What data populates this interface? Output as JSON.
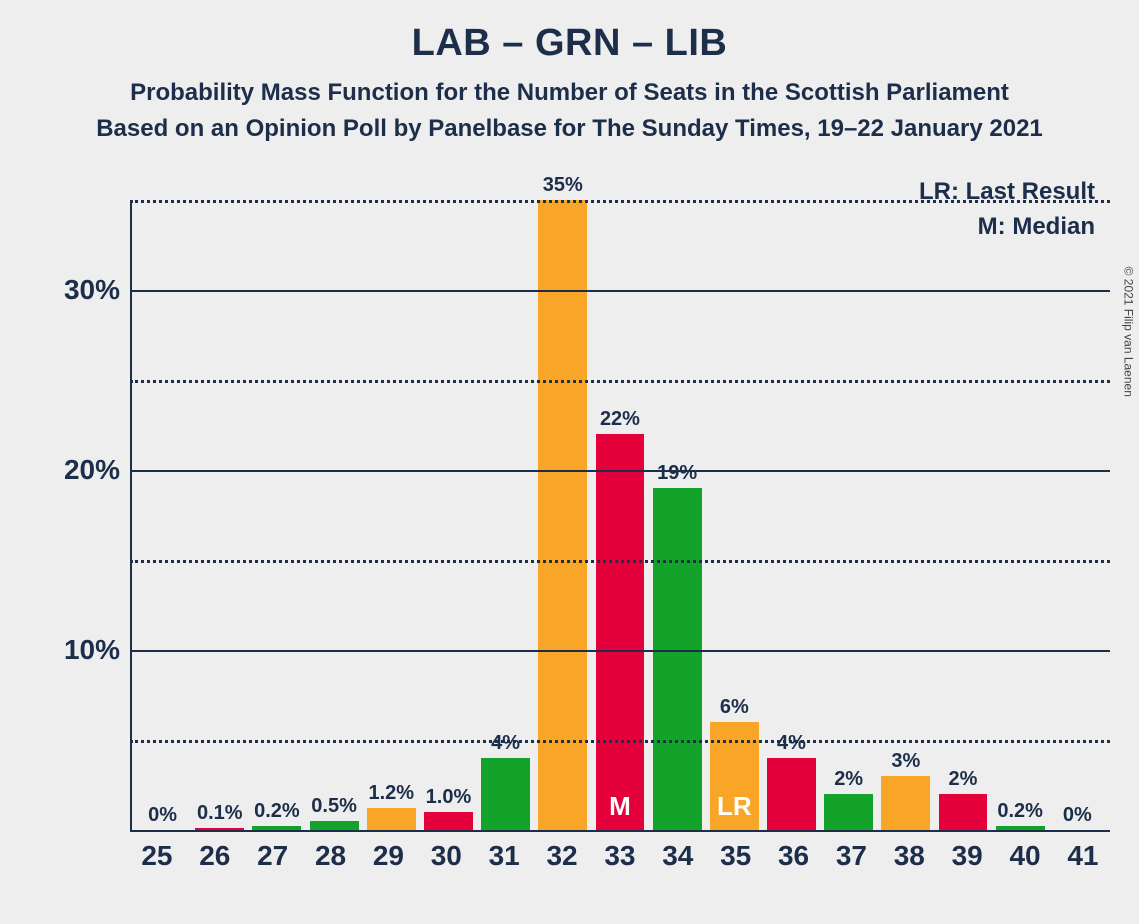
{
  "title": "LAB – GRN – LIB",
  "subtitle1": "Probability Mass Function for the Number of Seats in the Scottish Parliament",
  "subtitle2": "Based on an Opinion Poll by Panelbase for The Sunday Times, 19–22 January 2021",
  "legend": {
    "lr": "LR: Last Result",
    "m": "M: Median"
  },
  "copyright": "© 2021 Filip van Laenen",
  "chart": {
    "type": "bar",
    "background_color": "#eeeeee",
    "text_color": "#1c2e4a",
    "colors": {
      "red": "#e4003b",
      "green": "#13a32a",
      "orange": "#f9a527"
    },
    "y_axis": {
      "max": 35,
      "major_ticks": [
        10,
        20,
        30
      ],
      "minor_ticks": [
        5,
        15,
        25,
        35
      ]
    },
    "categories": [
      "25",
      "26",
      "27",
      "28",
      "29",
      "30",
      "31",
      "32",
      "33",
      "34",
      "35",
      "36",
      "37",
      "38",
      "39",
      "40",
      "41"
    ],
    "bars": [
      {
        "x": "25",
        "label": "0%",
        "value": 0,
        "color": "orange"
      },
      {
        "x": "26",
        "label": "0.1%",
        "value": 0.1,
        "color": "red"
      },
      {
        "x": "27",
        "label": "0.2%",
        "value": 0.2,
        "color": "green"
      },
      {
        "x": "28",
        "label": "0.5%",
        "value": 0.5,
        "color": "green"
      },
      {
        "x": "29",
        "label": "1.2%",
        "value": 1.2,
        "color": "orange"
      },
      {
        "x": "30",
        "label": "1.0%",
        "value": 1.0,
        "color": "red"
      },
      {
        "x": "31",
        "label": "4%",
        "value": 4,
        "color": "green"
      },
      {
        "x": "32",
        "label": "35%",
        "value": 35,
        "color": "orange"
      },
      {
        "x": "33",
        "label": "22%",
        "value": 22,
        "color": "red",
        "tag": "M"
      },
      {
        "x": "34",
        "label": "19%",
        "value": 19,
        "color": "green"
      },
      {
        "x": "35",
        "label": "6%",
        "value": 6,
        "color": "orange",
        "tag": "LR"
      },
      {
        "x": "36",
        "label": "4%",
        "value": 4,
        "color": "red"
      },
      {
        "x": "37",
        "label": "2%",
        "value": 2,
        "color": "green"
      },
      {
        "x": "38",
        "label": "3%",
        "value": 3,
        "color": "orange"
      },
      {
        "x": "39",
        "label": "2%",
        "value": 2,
        "color": "red"
      },
      {
        "x": "40",
        "label": "0.2%",
        "value": 0.2,
        "color": "green"
      },
      {
        "x": "41",
        "label": "0%",
        "value": 0,
        "color": "orange"
      }
    ],
    "title_fontsize": 38,
    "subtitle_fontsize": 24,
    "tick_fontsize": 28,
    "value_fontsize": 20
  }
}
